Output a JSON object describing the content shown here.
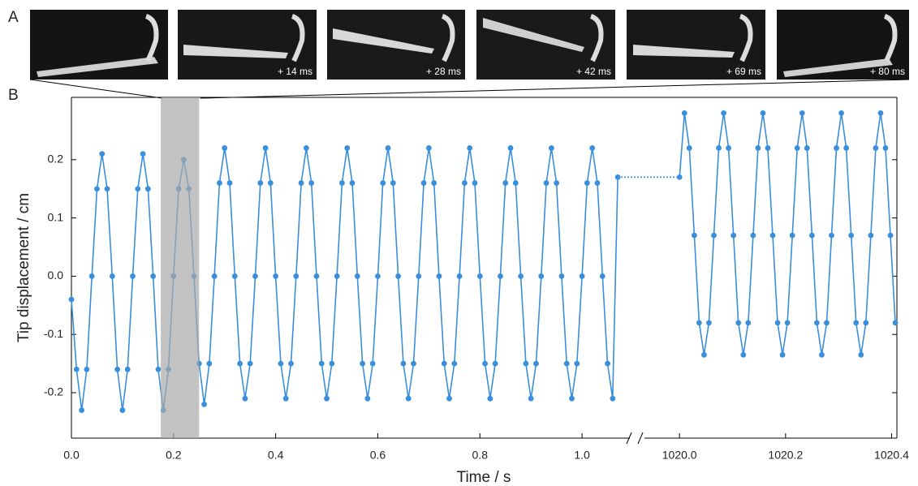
{
  "panel_a": {
    "label": "A",
    "frame_labels": [
      "+ 14 ms",
      "+ 28 ms",
      "+ 42 ms",
      "+ 69 ms",
      "+ 80 ms"
    ]
  },
  "chart_data": {
    "type": "line",
    "panel_label": "B",
    "x_label": "Time / s",
    "y_label": "Tip displacement / cm",
    "xlim": [
      0,
      1.1
    ],
    "xlim_right": [
      1019.94,
      1020.41
    ],
    "ylim": [
      -0.278,
      0.307
    ],
    "xticks": [
      {
        "value": 0,
        "label": "0.0"
      },
      0.2,
      0.4,
      0.6,
      0.8,
      {
        "value": 1,
        "label": "1.0"
      }
    ],
    "xticks_right": [
      {
        "value": 1020,
        "label": "1020.0"
      },
      1020.2,
      1020.4
    ],
    "yticks": [
      -0.2,
      -0.1,
      {
        "value": 0,
        "label": "0.0"
      },
      0.1,
      0.2
    ],
    "highlight": [
      0.175,
      0.25
    ],
    "color": "#3a8fdc",
    "series": [
      {
        "x": [
          0,
          0.01,
          0.02,
          0.03,
          0.04,
          0.05,
          0.06,
          0.07,
          0.08,
          0.09,
          0.1,
          0.11,
          0.12,
          0.13,
          0.14,
          0.15,
          0.16,
          0.17,
          0.18,
          0.19,
          0.2,
          0.21,
          0.22,
          0.23,
          0.24,
          0.25,
          0.26,
          0.27,
          0.28,
          0.29,
          0.3,
          0.31,
          0.32,
          0.33,
          0.34,
          0.35,
          0.36,
          0.37,
          0.38,
          0.39,
          0.4,
          0.41,
          0.42,
          0.43,
          0.44,
          0.45,
          0.46,
          0.47,
          0.48,
          0.49,
          0.5,
          0.51,
          0.52,
          0.53,
          0.54,
          0.55,
          0.56,
          0.57,
          0.58,
          0.59,
          0.6,
          0.61,
          0.62,
          0.63,
          0.64,
          0.65,
          0.66,
          0.67,
          0.68,
          0.69,
          0.7,
          0.71,
          0.72,
          0.73,
          0.74,
          0.75,
          0.76,
          0.77,
          0.78,
          0.79,
          0.8,
          0.81,
          0.82,
          0.83,
          0.84,
          0.85,
          0.86,
          0.87,
          0.88,
          0.89,
          0.9,
          0.91,
          0.92,
          0.93,
          0.94,
          0.95,
          0.96,
          0.97,
          0.98,
          0.99,
          1,
          1.01,
          1.02,
          1.03,
          1.04,
          1.05,
          1.06,
          1.07
        ],
        "values": [
          -0.04,
          -0.16,
          -0.23,
          -0.16,
          0.0,
          0.15,
          0.21,
          0.15,
          0.0,
          -0.16,
          -0.23,
          -0.16,
          0.0,
          0.15,
          0.21,
          0.15,
          0.0,
          -0.16,
          -0.23,
          -0.16,
          0.0,
          0.15,
          0.2,
          0.15,
          0.0,
          -0.15,
          -0.22,
          -0.15,
          0.0,
          0.16,
          0.22,
          0.16,
          0.0,
          -0.15,
          -0.21,
          -0.15,
          0.0,
          0.16,
          0.22,
          0.16,
          0.0,
          -0.15,
          -0.21,
          -0.15,
          0.0,
          0.16,
          0.22,
          0.16,
          0.0,
          -0.15,
          -0.21,
          -0.15,
          0.0,
          0.16,
          0.22,
          0.16,
          0.0,
          -0.15,
          -0.21,
          -0.15,
          0.0,
          0.16,
          0.22,
          0.16,
          0.0,
          -0.15,
          -0.21,
          -0.15,
          0.0,
          0.16,
          0.22,
          0.16,
          0.0,
          -0.15,
          -0.21,
          -0.15,
          0.0,
          0.16,
          0.22,
          0.16,
          0.0,
          -0.15,
          -0.21,
          -0.15,
          0.0,
          0.16,
          0.22,
          0.16,
          0.0,
          -0.15,
          -0.21,
          -0.15,
          0.0,
          0.16,
          0.22,
          0.16,
          0.0,
          -0.15,
          -0.21,
          -0.15,
          0.0,
          0.16,
          0.22,
          0.16,
          0.0,
          -0.15,
          -0.21,
          0.17
        ]
      },
      {
        "x": [
          1020.0,
          1020.0093,
          1020.0185,
          1020.0278,
          1020.037,
          1020.0463,
          1020.0555,
          1020.0648,
          1020.074,
          1020.0833,
          1020.0925,
          1020.1018,
          1020.111,
          1020.1203,
          1020.1295,
          1020.1388,
          1020.148,
          1020.1573,
          1020.1665,
          1020.1758,
          1020.185,
          1020.1943,
          1020.2035,
          1020.2128,
          1020.222,
          1020.2313,
          1020.2405,
          1020.2498,
          1020.259,
          1020.2683,
          1020.2775,
          1020.2868,
          1020.296,
          1020.3053,
          1020.3145,
          1020.3238,
          1020.333,
          1020.3423,
          1020.3515,
          1020.3608,
          1020.37,
          1020.3793,
          1020.3885,
          1020.3978,
          1020.407
        ],
        "values": [
          0.17,
          0.28,
          0.22,
          0.07,
          -0.08,
          -0.135,
          -0.08,
          0.07,
          0.22,
          0.28,
          0.22,
          0.07,
          -0.08,
          -0.135,
          -0.08,
          0.07,
          0.22,
          0.28,
          0.22,
          0.07,
          -0.08,
          -0.135,
          -0.08,
          0.07,
          0.22,
          0.28,
          0.22,
          0.07,
          -0.08,
          -0.135,
          -0.08,
          0.07,
          0.22,
          0.28,
          0.22,
          0.07,
          -0.08,
          -0.135,
          -0.08,
          0.07,
          0.22,
          0.28,
          0.22,
          0.07,
          -0.08
        ]
      }
    ]
  }
}
